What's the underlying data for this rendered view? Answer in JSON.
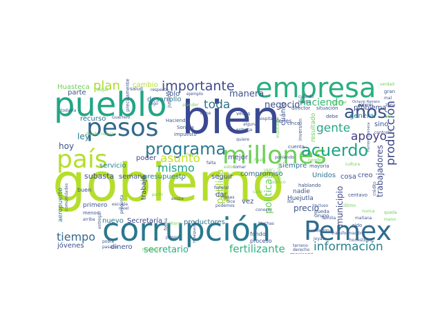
{
  "words": [
    {
      "text": "gobierno",
      "color": "#b5de2b"
    },
    {
      "text": "bien",
      "color": "#3b4992"
    },
    {
      "text": "corrupción",
      "color": "#2a788e"
    },
    {
      "text": "pueblo",
      "color": "#21a685"
    },
    {
      "text": "empresa",
      "color": "#29af7f"
    },
    {
      "text": "pesos",
      "color": "#31688e"
    },
    {
      "text": "país",
      "color": "#b5de2b"
    },
    {
      "text": "millones",
      "color": "#6ece58"
    },
    {
      "text": "Pemex",
      "color": "#2f6c8e"
    },
    {
      "text": "programa",
      "color": "#2a788e"
    },
    {
      "text": "años",
      "color": "#3b528b"
    },
    {
      "text": "acuerdo",
      "color": "#20a386"
    },
    {
      "text": "plan",
      "color": "#addc30"
    },
    {
      "text": "importante",
      "color": "#3e4989"
    },
    {
      "text": "información",
      "color": "#26828e"
    },
    {
      "text": "producción",
      "color": "#3e4a89"
    },
    {
      "text": "asunto",
      "color": "#c8e020"
    },
    {
      "text": "gente",
      "color": "#22a884"
    },
    {
      "text": "apoyo",
      "color": "#433e85"
    },
    {
      "text": "toda",
      "color": "#2c728e"
    },
    {
      "text": "mismo",
      "color": "#1fa088"
    },
    {
      "text": "haciendo",
      "color": "#35b779"
    },
    {
      "text": "tiempo",
      "color": "#31688e"
    },
    {
      "text": "fertilizante",
      "color": "#2db27d"
    },
    {
      "text": "secretario",
      "color": "#27ad81"
    },
    {
      "text": "política",
      "color": "#6ece58"
    },
    {
      "text": "pública",
      "color": "#a0da39"
    },
    {
      "text": "trabajadores",
      "color": "#3e4989"
    },
    {
      "text": "manera",
      "color": "#3b528b"
    },
    {
      "text": "negocio",
      "color": "#3e4989"
    },
    {
      "text": "Huasteca",
      "color": "#6ece58"
    },
    {
      "text": "cambio",
      "color": "#b8de29"
    },
    {
      "text": "parte",
      "color": "#3b528b"
    },
    {
      "text": "desarrollo",
      "color": "#2a788e"
    },
    {
      "text": "recurso",
      "color": "#2c728e"
    },
    {
      "text": "ley",
      "color": "#2a788e"
    },
    {
      "text": "hoy",
      "color": "#3b528b"
    },
    {
      "text": "servicio",
      "color": "#26828e"
    },
    {
      "text": "subasta",
      "color": "#3e4a89"
    },
    {
      "text": "semana",
      "color": "#3b528b"
    },
    {
      "text": "poder",
      "color": "#3e4a89"
    },
    {
      "text": "presupuesto",
      "color": "#26828e"
    },
    {
      "text": "trabajo",
      "color": "#3b528b"
    },
    {
      "text": "nuevo",
      "color": "#2a788e"
    },
    {
      "text": "Secretaría",
      "color": "#3e4a89"
    },
    {
      "text": "productores",
      "color": "#2c728e"
    },
    {
      "text": "compromiso",
      "color": "#31688e"
    },
    {
      "text": "siempre",
      "color": "#2c728e"
    },
    {
      "text": "Unidos",
      "color": "#2c728e"
    },
    {
      "text": "cosa",
      "color": "#3b528b"
    },
    {
      "text": "creo",
      "color": "#3b528b"
    },
    {
      "text": "precio",
      "color": "#3b528b"
    },
    {
      "text": "municipio",
      "color": "#3e4989"
    },
    {
      "text": "problema",
      "color": "#3e4a89"
    },
    {
      "text": "general",
      "color": "#26828e"
    },
    {
      "text": "sino",
      "color": "#3b528b"
    },
    {
      "text": "seguir",
      "color": "#3b528b"
    },
    {
      "text": "mejor",
      "color": "#3b528b"
    },
    {
      "text": "sólo",
      "color": "#3b528b"
    },
    {
      "text": "dinero",
      "color": "#3b528b"
    },
    {
      "text": "jóvenes",
      "color": "#3e4a89"
    },
    {
      "text": "aeropuerto",
      "color": "#2a788e"
    },
    {
      "text": "primero",
      "color": "#3b528b"
    },
    {
      "text": "fondo",
      "color": "#3b528b"
    },
    {
      "text": "vez",
      "color": "#3e4a89"
    },
    {
      "text": "dar",
      "color": "#3b528b"
    },
    {
      "text": "Huejutla",
      "color": "#3b528b"
    },
    {
      "text": "nadie",
      "color": "#3b528b"
    },
    {
      "text": "cuánto",
      "color": "#3b528b"
    },
    {
      "text": "resultado",
      "color": "#6ece58"
    },
    {
      "text": "proceso",
      "color": "#3b528b"
    },
    {
      "text": "buen",
      "color": "#3b528b"
    },
    {
      "text": "menos",
      "color": "#3b528b"
    },
    {
      "text": "debe",
      "color": "#3b528b"
    },
    {
      "text": "bienes",
      "color": "#3b528b"
    },
    {
      "text": "mexicano",
      "color": "#3b528b"
    },
    {
      "text": "hablando",
      "color": "#3b528b"
    },
    {
      "text": "pueda",
      "color": "#3b528b"
    },
    {
      "text": "Grupo",
      "color": "#3b528b"
    },
    {
      "text": "sido",
      "color": "#3b528b"
    },
    {
      "text": "centavo",
      "color": "#3b528b"
    },
    {
      "text": "cuenta",
      "color": "#3b528b"
    },
    {
      "text": "Hacienda",
      "color": "#3b528b"
    },
    {
      "text": "Sonora",
      "color": "#3b528b"
    },
    {
      "text": "impuesto",
      "color": "#3b528b"
    },
    {
      "text": "precisamente",
      "color": "#3b528b"
    },
    {
      "text": "justicia",
      "color": "#3b528b"
    },
    {
      "text": "director",
      "color": "#3b528b"
    },
    {
      "text": "situación",
      "color": "#3b528b"
    },
    {
      "text": "cinco",
      "color": "#3b528b"
    },
    {
      "text": "gran",
      "color": "#3b528b"
    },
    {
      "text": "mal",
      "color": "#3b528b"
    },
    {
      "text": "verdad",
      "color": "#6ece58"
    },
    {
      "text": "salud",
      "color": "#3b528b"
    },
    {
      "text": "respecto",
      "color": "#3b528b"
    },
    {
      "text": "ejemplo",
      "color": "#3b528b"
    },
    {
      "text": "hecho",
      "color": "#3b528b"
    },
    {
      "text": "veces",
      "color": "#3b528b"
    },
    {
      "text": "cuándo",
      "color": "#3b528b"
    },
    {
      "text": "inversión",
      "color": "#3b528b"
    },
    {
      "text": "entrega",
      "color": "#3b528b"
    },
    {
      "text": "alguna",
      "color": "#3b528b"
    },
    {
      "text": "hospitales",
      "color": "#3b528b"
    },
    {
      "text": "mayoría",
      "color": "#3b528b"
    },
    {
      "text": "tomar",
      "color": "#3b528b"
    },
    {
      "text": "poniendo",
      "color": "#3b528b"
    },
    {
      "text": "todavía",
      "color": "#3b528b"
    },
    {
      "text": "dice",
      "color": "#3b528b"
    },
    {
      "text": "existe",
      "color": "#3b528b"
    },
    {
      "text": "pagar",
      "color": "#3b528b"
    },
    {
      "text": "Guerrero",
      "color": "#3b528b"
    },
    {
      "text": "Muchas",
      "color": "#3b528b"
    },
    {
      "text": "honestidad",
      "color": "#3b528b"
    },
    {
      "text": "Nacional",
      "color": "#3b528b"
    },
    {
      "text": "transformación",
      "color": "#3b528b"
    },
    {
      "text": "derecho",
      "color": "#3b528b"
    },
    {
      "text": "mañana",
      "color": "#3b528b"
    },
    {
      "text": "conocer",
      "color": "#3b528b"
    },
    {
      "text": "pobre",
      "color": "#3b528b"
    },
    {
      "text": "pasado",
      "color": "#3b528b"
    },
    {
      "text": "entregar",
      "color": "#3b528b"
    },
    {
      "text": "escuela",
      "color": "#3b528b"
    },
    {
      "text": "nivel",
      "color": "#3b528b"
    },
    {
      "text": "federal",
      "color": "#3b528b"
    },
    {
      "text": "meses",
      "color": "#3b528b"
    },
    {
      "text": "crédito",
      "color": "#3b528b"
    },
    {
      "text": "interés",
      "color": "#3b528b"
    },
    {
      "text": "zona",
      "color": "#3b528b"
    },
    {
      "text": "contrato",
      "color": "#3b528b"
    },
    {
      "text": "cultura",
      "color": "#6ece58"
    },
    {
      "text": "falta",
      "color": "#3b528b"
    },
    {
      "text": "arriba",
      "color": "#3b528b"
    },
    {
      "text": "forma",
      "color": "#3b528b"
    },
    {
      "text": "iba",
      "color": "#3b528b"
    },
    {
      "text": "incluso",
      "color": "#3b528b"
    },
    {
      "text": "familia",
      "color": "#3b528b"
    },
    {
      "text": "joyas",
      "color": "#3b528b"
    },
    {
      "text": "terreno",
      "color": "#3b528b"
    },
    {
      "text": "llegar",
      "color": "#6ece58"
    },
    {
      "text": "digo",
      "color": "#3b528b"
    },
    {
      "text": "atender",
      "color": "#6ece58"
    },
    {
      "text": "ingresar",
      "color": "#6ece58"
    },
    {
      "text": "tiene",
      "color": "#3b528b"
    },
    {
      "text": "quiere",
      "color": "#3b528b"
    },
    {
      "text": "pregunta",
      "color": "#3b528b"
    },
    {
      "text": "comunidades",
      "color": "#3b528b"
    },
    {
      "text": "ahora",
      "color": "#6ece58"
    },
    {
      "text": "deuda",
      "color": "#6ece58"
    },
    {
      "text": "nueva",
      "color": "#6ece58"
    },
    {
      "text": "ir",
      "color": "#3b528b"
    },
    {
      "text": "estos",
      "color": "#6ece58"
    },
    {
      "text": "podemos",
      "color": "#3b528b"
    },
    {
      "text": "terminar",
      "color": "#6ece58"
    },
    {
      "text": "Octavio Romero",
      "color": "#3b528b"
    },
    {
      "text": "Hombre Oroneca",
      "color": "#3b528b"
    },
    {
      "text": "Hidalguense",
      "color": "#3b528b"
    },
    {
      "text": "usar",
      "color": "#6ece58"
    },
    {
      "text": "llegan",
      "color": "#6ece58"
    },
    {
      "text": "público",
      "color": "#6ece58"
    },
    {
      "text": "institutos",
      "color": "#6ece58"
    },
    {
      "text": "hay",
      "color": "#6ece58"
    },
    {
      "text": "último",
      "color": "#6ece58"
    },
    {
      "text": "propósito",
      "color": "#6ece58"
    },
    {
      "text": "nombre",
      "color": "#6ece58"
    },
    {
      "text": "hasta",
      "color": "#6ece58"
    },
    {
      "text": "caso",
      "color": "#6ece58"
    },
    {
      "text": "partir",
      "color": "#6ece58"
    },
    {
      "text": "nunca",
      "color": "#6ece58"
    },
    {
      "text": "sea",
      "color": "#6ece58"
    },
    {
      "text": "quedar",
      "color": "#6ece58"
    },
    {
      "text": "mano",
      "color": "#6ece58"
    }
  ]
}
